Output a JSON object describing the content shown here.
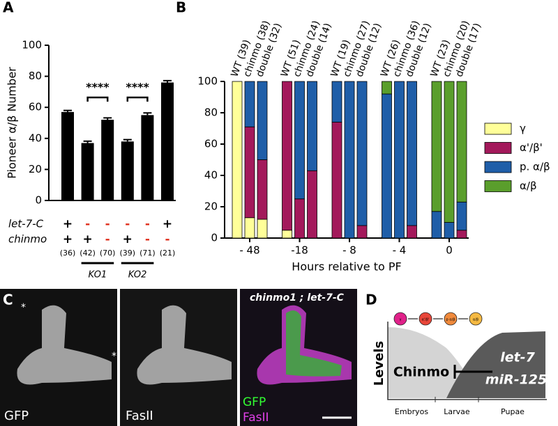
{
  "chart_data": [
    {
      "type": "bar",
      "panel": "A",
      "ylabel": "Pioneer α/β Number",
      "categories": [
        "(36)",
        "(42)",
        "(70)",
        "(39)",
        "(71)",
        "(21)"
      ],
      "values": [
        57,
        37,
        52,
        38,
        55,
        76
      ],
      "errors": [
        1,
        1.2,
        1.2,
        1.2,
        1.4,
        1.2
      ],
      "color": "#000000",
      "ylim": [
        0,
        100
      ],
      "yticks": [
        0,
        20,
        40,
        60,
        80,
        100
      ],
      "genotype_rows": [
        {
          "name": "let-7-C",
          "values": [
            "+",
            "-",
            "-",
            "-",
            "-",
            "+"
          ]
        },
        {
          "name": "chinmo",
          "values": [
            "+",
            "+",
            "-",
            "+",
            "-",
            "-"
          ]
        }
      ],
      "significance": [
        "****",
        "****"
      ],
      "groups": [
        "KO1",
        "KO2"
      ]
    },
    {
      "type": "stacked_bar",
      "panel": "B",
      "xlabel": "Hours relative to PF",
      "categories": [
        "WT (39)",
        "chinmo (38)",
        "double (32)",
        "WT (51)",
        "chinmo (24)",
        "double (14)",
        "WT (19)",
        "chinmo (27)",
        "double (12)",
        "WT (26)",
        "chinmo (36)",
        "double (12)",
        "WT (23)",
        "chinmo (20)",
        "double (17)"
      ],
      "groups": [
        "- 48",
        "-18",
        "- 8",
        "- 4",
        "0"
      ],
      "ylim": [
        0,
        100
      ],
      "yticks": [
        0,
        20,
        40,
        60,
        80,
        100
      ],
      "series": [
        {
          "name": "γ",
          "color": "#ffff99",
          "values": [
            100,
            13,
            12,
            5,
            0,
            0,
            0,
            0,
            0,
            0,
            0,
            0,
            0,
            0,
            0
          ]
        },
        {
          "name": "α'/β'",
          "color": "#a3195b",
          "values": [
            0,
            58,
            38,
            95,
            25,
            43,
            74,
            0,
            8,
            0,
            0,
            8,
            0,
            0,
            5
          ]
        },
        {
          "name": "p. α/β",
          "color": "#1f5ea8",
          "values": [
            0,
            29,
            50,
            0,
            75,
            57,
            26,
            100,
            92,
            92,
            100,
            92,
            17,
            10,
            18
          ]
        },
        {
          "name": " α/β",
          "color": "#5a9e2c",
          "values": [
            0,
            0,
            0,
            0,
            0,
            0,
            0,
            0,
            0,
            8,
            0,
            0,
            83,
            90,
            77
          ]
        }
      ]
    }
  ],
  "panel_c": {
    "letter": "C",
    "image_labels": [
      "GFP",
      "FasII"
    ],
    "merge_title": "chinmo1 ; let-7-C",
    "merge_labels": [
      "GFP",
      "FasII"
    ],
    "markers": [
      "*",
      "*"
    ]
  },
  "panel_d": {
    "letter": "D",
    "y_label": "Levels",
    "stages": [
      "γ",
      "α'/β'",
      "p α/β",
      "α/β"
    ],
    "left_label": "Chinmo",
    "right_labels": [
      "let-7",
      "miR-125"
    ],
    "x_labels": [
      "Embryos",
      "Larvae",
      "Pupae"
    ]
  }
}
